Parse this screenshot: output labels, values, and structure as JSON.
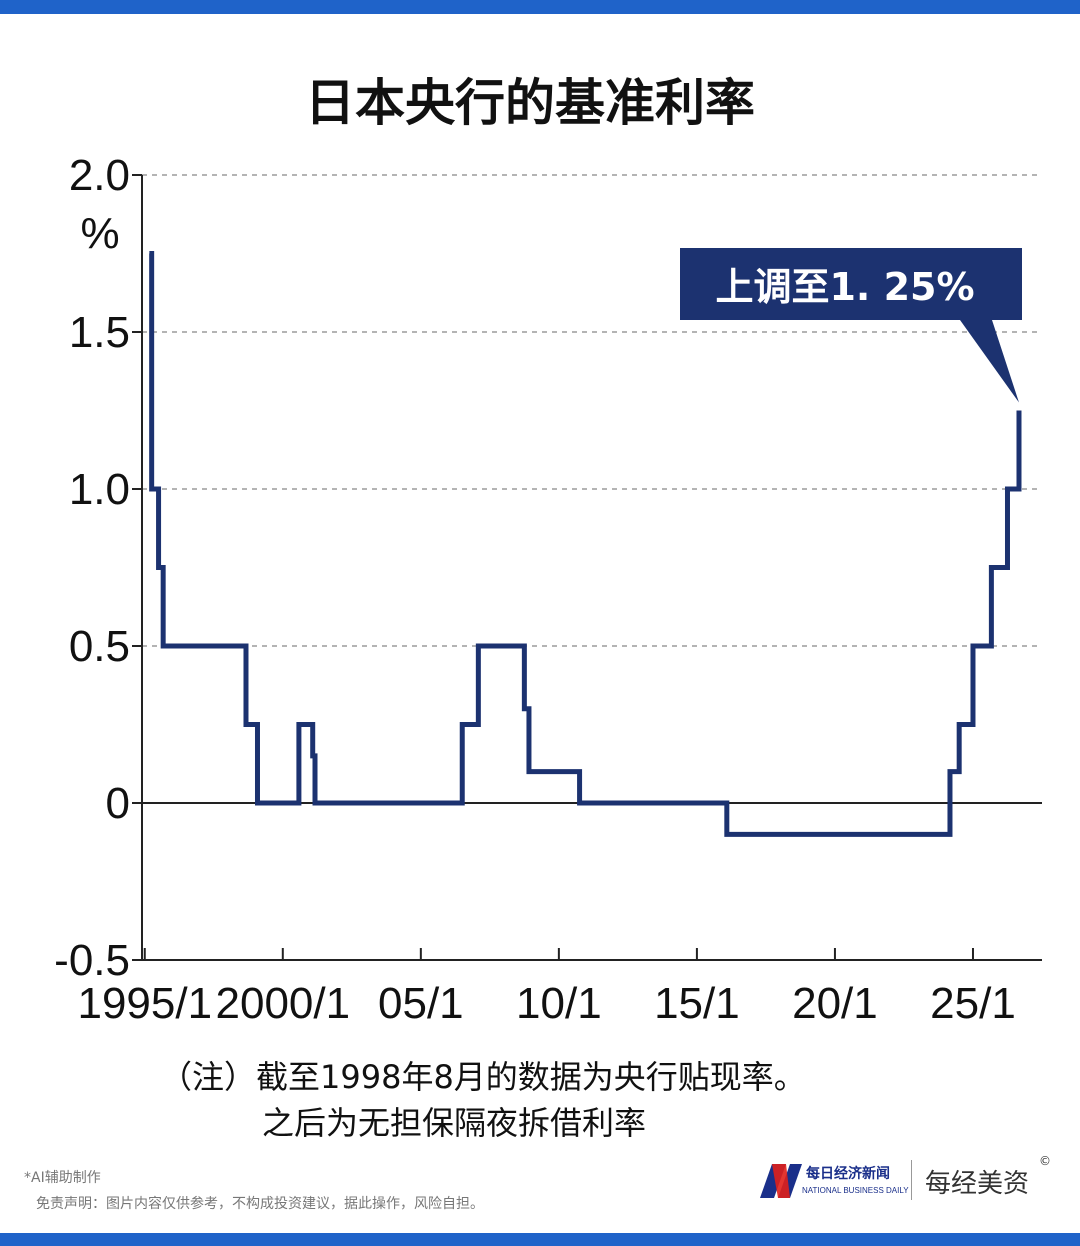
{
  "chart_data": {
    "type": "line",
    "step": true,
    "title": "日本央行的基准利率",
    "yunit": "%",
    "ylim": [
      -0.5,
      2.0
    ],
    "yticks": [
      {
        "value": 2.0,
        "label": "2.0"
      },
      {
        "value": 1.5,
        "label": "1.5"
      },
      {
        "value": 1.0,
        "label": "1.0"
      },
      {
        "value": 0.5,
        "label": "0.5"
      },
      {
        "value": 0,
        "label": "0"
      },
      {
        "value": -0.5,
        "label": "-0.5"
      }
    ],
    "xticks": [
      {
        "year": 1995,
        "label": "1995/1"
      },
      {
        "year": 2000,
        "label": "2000/1"
      },
      {
        "year": 2005,
        "label": "05/1"
      },
      {
        "year": 2010,
        "label": "10/1"
      },
      {
        "year": 2015,
        "label": "15/1"
      },
      {
        "year": 2020,
        "label": "20/1"
      },
      {
        "year": 2025,
        "label": "25/1"
      }
    ],
    "xlim": [
      1994.9,
      2027.5
    ],
    "grid": "horizontal dashed",
    "series": [
      {
        "color": "#1c3270",
        "points": [
          {
            "date": "1995-03",
            "rate": 1.75
          },
          {
            "date": "1995-04",
            "rate": 1.0
          },
          {
            "date": "1995-07",
            "rate": 0.75
          },
          {
            "date": "1995-09",
            "rate": 0.5
          },
          {
            "date": "1998-09",
            "rate": 0.25
          },
          {
            "date": "1999-02",
            "rate": 0.0
          },
          {
            "date": "2000-08",
            "rate": 0.25
          },
          {
            "date": "2001-02",
            "rate": 0.15
          },
          {
            "date": "2001-03",
            "rate": 0.0
          },
          {
            "date": "2006-07",
            "rate": 0.25
          },
          {
            "date": "2007-02",
            "rate": 0.5
          },
          {
            "date": "2008-10",
            "rate": 0.3
          },
          {
            "date": "2008-12",
            "rate": 0.1
          },
          {
            "date": "2010-10",
            "rate": 0.0
          },
          {
            "date": "2016-02",
            "rate": -0.1
          },
          {
            "date": "2024-03",
            "rate": 0.1
          },
          {
            "date": "2024-07",
            "rate": 0.25
          },
          {
            "date": "2025-01",
            "rate": 0.5
          },
          {
            "date": "2025-09",
            "rate": 0.75
          },
          {
            "date": "2026-04",
            "rate": 1.0
          },
          {
            "date": "2026-09",
            "rate": 1.25
          }
        ]
      }
    ],
    "annotation": {
      "text": "上调至1. 25%",
      "date": "2026-09",
      "rate": 1.25
    }
  },
  "note_line1": "（注）截至1998年8月的数据为央行贴现率。",
  "note_line2": "之后为无担保隔夜拆借利率",
  "ai_note": "*AI辅助制作",
  "disclaimer": "免责声明：图片内容仅供参考，不构成投资建议，据此操作，风险自担。",
  "brand": {
    "name_cn": "每日经济新闻",
    "name_en": "NATIONAL BUSINESS DAILY",
    "sub": "每经美资",
    "copyright": "©",
    "primary_color": "#1a2f8a",
    "accent_color": "#e0201a"
  },
  "colors": {
    "frame_bar": "#1f63c9",
    "line": "#1c3270",
    "annotation_bg": "#1c3270"
  }
}
